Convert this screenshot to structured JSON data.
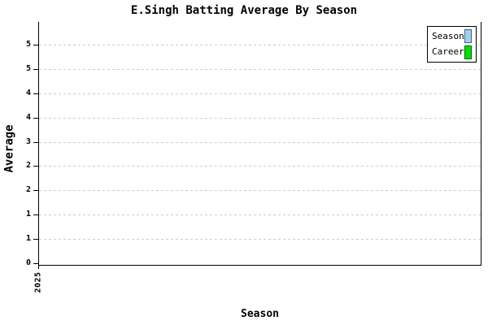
{
  "window": {
    "background": "#ffffff"
  },
  "chart_data": {
    "type": "bar",
    "title": "E.Singh Batting Average By Season",
    "xlabel": "Season",
    "ylabel": "Average",
    "categories": [
      "2025"
    ],
    "series": [
      {
        "name": "Season",
        "fill": "#A6CEE8",
        "outline": "#336699"
      },
      {
        "name": "Career",
        "fill": "#00E000",
        "outline": "#006600"
      }
    ],
    "y_axis": {
      "tick_labels_top_to_bottom": [
        "5",
        "5",
        "4",
        "4",
        "3",
        "2",
        "2",
        "1",
        "1",
        "0"
      ],
      "range_min": 0,
      "grid": "dashed-horizontal",
      "grid_color": "#cccccc",
      "axis_color": "#000000"
    },
    "x_axis": {
      "tick_labels": [
        "2025"
      ],
      "tick_label_rotation_deg": -90
    },
    "legend": {
      "position": "top-right",
      "entries": [
        "Season",
        "Career"
      ]
    },
    "plot": {
      "bars_visible": false
    }
  }
}
